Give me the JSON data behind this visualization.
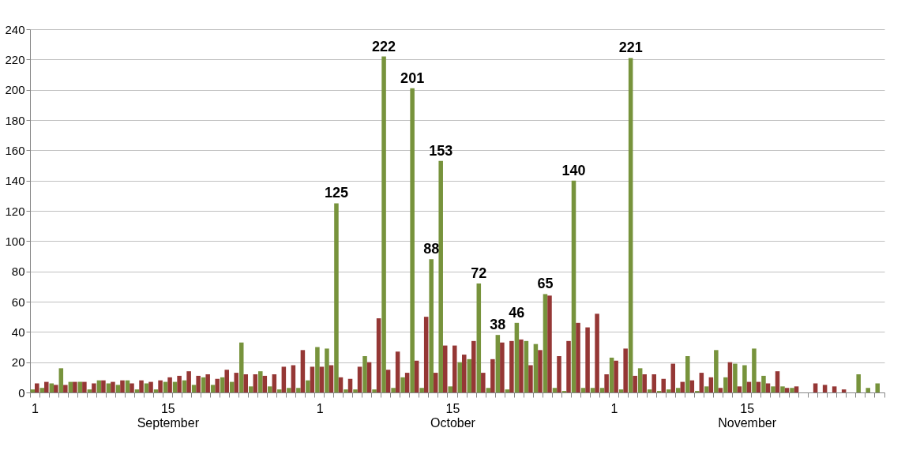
{
  "chart_data": {
    "type": "bar",
    "grid": "y",
    "ylim": [
      0,
      240
    ],
    "yticks": [
      0,
      20,
      40,
      60,
      80,
      100,
      120,
      140,
      160,
      180,
      200,
      220,
      240
    ],
    "categories": [
      "1",
      null,
      null,
      null,
      null,
      null,
      null,
      null,
      null,
      null,
      null,
      null,
      null,
      null,
      "15\nSeptember",
      null,
      null,
      null,
      null,
      null,
      null,
      null,
      null,
      null,
      null,
      null,
      null,
      null,
      null,
      null,
      "1",
      null,
      null,
      null,
      null,
      null,
      null,
      null,
      null,
      null,
      null,
      null,
      null,
      null,
      "15\nOctober",
      null,
      null,
      null,
      null,
      null,
      null,
      null,
      null,
      null,
      null,
      null,
      null,
      null,
      null,
      null,
      null,
      "1",
      null,
      null,
      null,
      null,
      null,
      null,
      null,
      null,
      null,
      null,
      null,
      null,
      null,
      "15\nNovember",
      null,
      null,
      null,
      null,
      null,
      null,
      null,
      null,
      null,
      null,
      null,
      null,
      null,
      null
    ],
    "series": [
      {
        "color": "#77933c",
        "values": [
          2,
          3,
          6,
          16,
          7,
          7,
          2,
          8,
          6,
          5,
          8,
          2,
          6,
          2,
          7,
          7,
          8,
          5,
          10,
          5,
          10,
          7,
          33,
          4,
          14,
          4,
          2,
          3,
          3,
          8,
          30,
          29,
          125,
          2,
          2,
          24,
          2,
          222,
          3,
          10,
          201,
          3,
          88,
          153,
          4,
          20,
          22,
          72,
          3,
          38,
          2,
          46,
          34,
          32,
          65,
          3,
          1,
          140,
          3,
          3,
          3,
          23,
          2,
          221,
          16,
          2,
          1,
          2,
          3,
          24,
          1,
          4,
          28,
          10,
          19,
          18,
          29,
          11,
          4,
          4,
          3,
          null,
          null,
          null,
          null,
          null,
          null,
          12,
          3,
          6
        ],
        "value_labels": [
          null,
          null,
          null,
          null,
          null,
          null,
          null,
          null,
          null,
          null,
          null,
          null,
          null,
          null,
          null,
          null,
          null,
          null,
          null,
          null,
          null,
          null,
          null,
          null,
          null,
          null,
          null,
          null,
          null,
          null,
          null,
          null,
          "125",
          null,
          null,
          null,
          null,
          "222",
          null,
          null,
          "201",
          null,
          "88",
          "153",
          null,
          null,
          null,
          "72",
          null,
          "38",
          null,
          "46",
          null,
          null,
          "65",
          null,
          null,
          "140",
          null,
          null,
          null,
          null,
          null,
          "221",
          null,
          null,
          null,
          null,
          null,
          null,
          null,
          null,
          null,
          null,
          null,
          null,
          null,
          null,
          null,
          null,
          null,
          null,
          null,
          null,
          null,
          null,
          null,
          null,
          null,
          null
        ]
      },
      {
        "color": "#953735",
        "values": [
          6,
          7,
          5,
          5,
          7,
          7,
          6,
          8,
          7,
          8,
          6,
          8,
          7,
          8,
          10,
          11,
          14,
          11,
          12,
          9,
          15,
          13,
          12,
          12,
          11,
          12,
          17,
          18,
          28,
          17,
          17,
          18,
          10,
          9,
          17,
          20,
          49,
          15,
          27,
          13,
          21,
          50,
          13,
          31,
          31,
          25,
          34,
          13,
          22,
          33,
          34,
          35,
          18,
          28,
          64,
          24,
          34,
          46,
          43,
          52,
          12,
          21,
          29,
          11,
          12,
          12,
          9,
          19,
          7,
          8,
          13,
          10,
          3,
          20,
          4,
          7,
          7,
          6,
          14,
          3,
          4,
          null,
          6,
          5,
          4,
          2,
          null,
          null,
          null,
          null
        ]
      }
    ]
  }
}
